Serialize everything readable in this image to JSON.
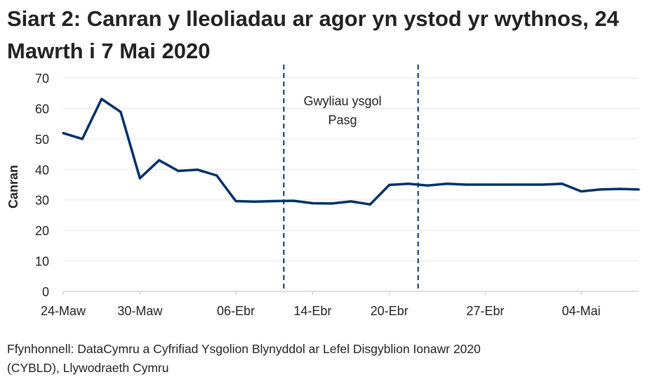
{
  "chart_data": {
    "type": "line",
    "title": "Siart 2: Canran y lleoliadau ar agor yn ystod yr wythnos, 24 Mawrth i 7 Mai 2020",
    "xlabel": "",
    "ylabel": "Canran",
    "ylim": [
      0,
      70
    ],
    "yticks": [
      0,
      10,
      20,
      30,
      40,
      50,
      60,
      70
    ],
    "grid": true,
    "x": [
      "24-Maw",
      "25-Maw",
      "26-Maw",
      "27-Maw",
      "30-Maw",
      "31-Maw",
      "01-Ebr",
      "02-Ebr",
      "03-Ebr",
      "06-Ebr",
      "07-Ebr",
      "08-Ebr",
      "09-Ebr",
      "14-Ebr",
      "15-Ebr",
      "16-Ebr",
      "17-Ebr",
      "20-Ebr",
      "21-Ebr",
      "22-Ebr",
      "23-Ebr",
      "24-Ebr",
      "27-Ebr",
      "28-Ebr",
      "29-Ebr",
      "30-Ebr",
      "01-Mai",
      "04-Mai",
      "05-Mai",
      "06-Mai",
      "07-Mai"
    ],
    "xtick_labels": [
      "24-Maw",
      "30-Maw",
      "06-Ebr",
      "14-Ebr",
      "20-Ebr",
      "27-Ebr",
      "04-Mai"
    ],
    "series": [
      {
        "values": [
          51.9,
          50.0,
          63.1,
          58.8,
          37.1,
          43.0,
          39.5,
          39.9,
          38.0,
          29.6,
          29.4,
          29.6,
          29.7,
          28.9,
          28.8,
          29.5,
          28.5,
          34.9,
          35.3,
          34.7,
          35.3,
          35.0,
          35.0,
          35.0,
          35.0,
          35.0,
          35.3,
          32.8,
          33.4,
          33.6,
          33.4
        ],
        "color": "#003069"
      }
    ],
    "reference_lines": [
      {
        "between": [
          "08-Ebr",
          "09-Ebr"
        ],
        "style": "dashed",
        "color": "#003069"
      },
      {
        "between": [
          "21-Ebr",
          "22-Ebr"
        ],
        "style": "dashed",
        "color": "#003069"
      }
    ],
    "annotation": [
      "Gwyliau ysgol",
      "Pasg"
    ]
  },
  "source": [
    "Ffynhonnell: DataCymru a Cyfrifiad Ysgolion Blynyddol ar Lefel Disgyblion Ionawr 2020",
    "(CYBLD), Llywodraeth Cymru"
  ]
}
